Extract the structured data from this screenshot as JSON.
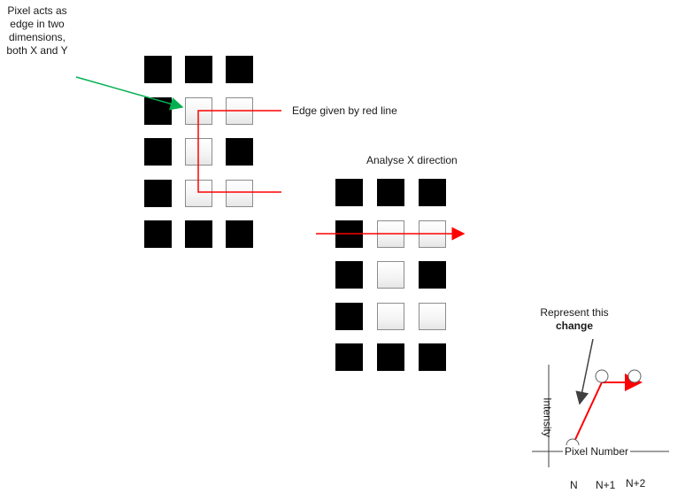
{
  "annotations": {
    "pixel_note_line1": "Pixel acts as",
    "pixel_note_line2": "edge in two",
    "pixel_note_line3": "dimensions,",
    "pixel_note_line4": "both X and Y",
    "edge_label": "Edge given by red line",
    "analyse_label": "Analyse X direction",
    "represent_line1": "Represent this",
    "represent_line2": "change"
  },
  "graph": {
    "y_axis_label": "Intensity",
    "x_axis_label": "Pixel Number",
    "x_ticks": [
      "N",
      "N+1",
      "N+2"
    ]
  },
  "grid_left": {
    "rows": [
      [
        "black",
        "black",
        "black"
      ],
      [
        "black",
        "white",
        "white"
      ],
      [
        "black",
        "white",
        "black"
      ],
      [
        "black",
        "white",
        "white"
      ],
      [
        "black",
        "black",
        "black"
      ]
    ]
  },
  "grid_right": {
    "rows": [
      [
        "black",
        "black",
        "black"
      ],
      [
        "black",
        "white",
        "white"
      ],
      [
        "black",
        "white",
        "black"
      ],
      [
        "black",
        "white",
        "white"
      ],
      [
        "black",
        "black",
        "black"
      ]
    ]
  },
  "colors": {
    "edge_line": "#ff0000",
    "pointer_arrow": "#00b050",
    "callout_arrow": "#404040",
    "axis": "#404040"
  }
}
